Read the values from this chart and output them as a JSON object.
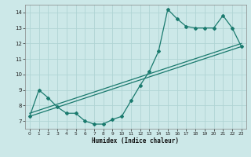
{
  "title": "",
  "xlabel": "Humidex (Indice chaleur)",
  "bg_color": "#cce8e8",
  "grid_color": "#b0d4d4",
  "line_color": "#1a7a6e",
  "xlim": [
    -0.5,
    23.5
  ],
  "ylim": [
    6.5,
    14.5
  ],
  "xticks": [
    0,
    1,
    2,
    3,
    4,
    5,
    6,
    7,
    8,
    9,
    10,
    11,
    12,
    13,
    14,
    15,
    16,
    17,
    18,
    19,
    20,
    21,
    22,
    23
  ],
  "yticks": [
    7,
    8,
    9,
    10,
    11,
    12,
    13,
    14
  ],
  "series_main": {
    "x": [
      0,
      1,
      2,
      3,
      4,
      5,
      6,
      7,
      8,
      9,
      10,
      11,
      12,
      13,
      14,
      15,
      16,
      17,
      18,
      19,
      20,
      21,
      22,
      23
    ],
    "y": [
      7.3,
      9.0,
      8.5,
      7.9,
      7.5,
      7.5,
      7.0,
      6.8,
      6.8,
      7.1,
      7.3,
      8.3,
      9.3,
      10.2,
      11.5,
      14.2,
      13.6,
      13.1,
      13.0,
      13.0,
      13.0,
      13.8,
      13.0,
      11.8
    ]
  },
  "trend1": {
    "x": [
      0,
      23
    ],
    "y": [
      7.3,
      11.8
    ]
  },
  "trend2": {
    "x": [
      0,
      23
    ],
    "y": [
      7.5,
      12.0
    ]
  }
}
